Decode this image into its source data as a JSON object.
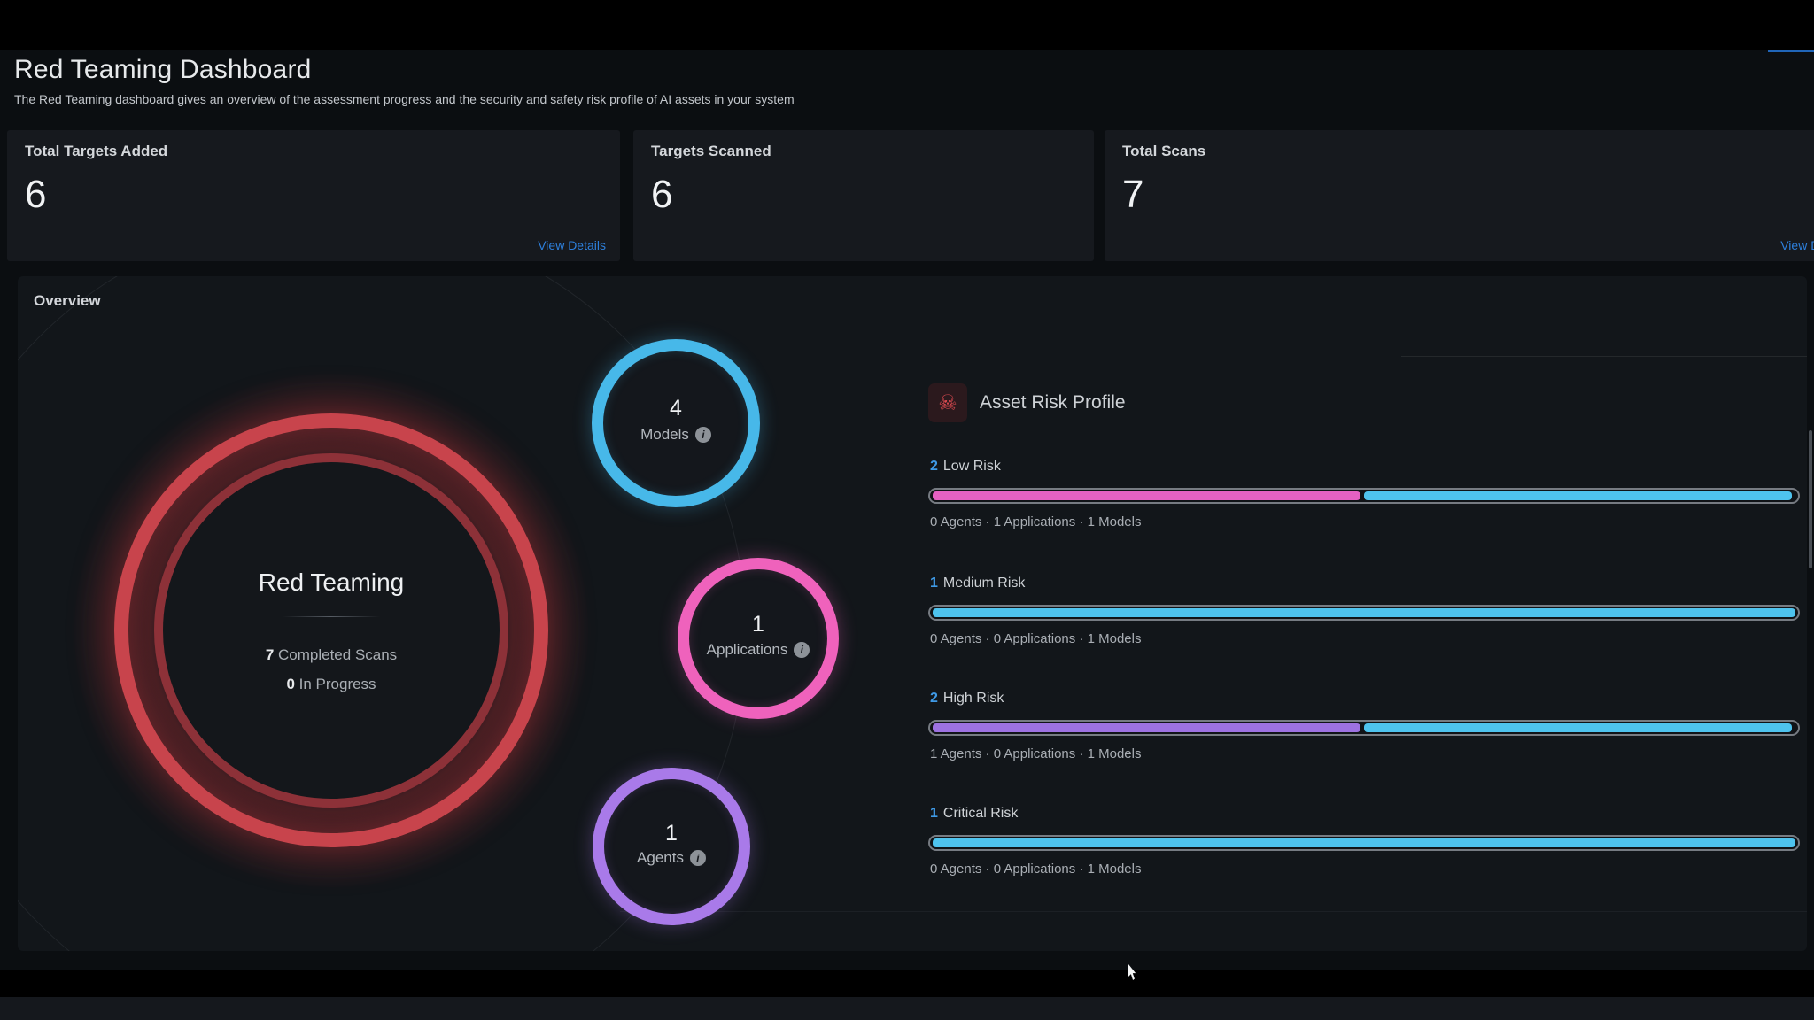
{
  "header": {
    "title": "Red Teaming Dashboard",
    "subtitle": "The Red Teaming dashboard gives an overview of the assessment progress and the security and safety risk profile of AI assets in your system"
  },
  "stat_cards": [
    {
      "label": "Total Targets Added",
      "value": "6",
      "link": "View Details"
    },
    {
      "label": "Targets Scanned",
      "value": "6"
    },
    {
      "label": "Total Scans",
      "value": "7",
      "link": "View Details"
    }
  ],
  "overview": {
    "title": "Overview",
    "gauge": {
      "title": "Red Teaming",
      "ring_color": "#c8444c",
      "completed": {
        "count": "7",
        "label": " Completed Scans"
      },
      "in_progress": {
        "count": "0",
        "label": " In Progress"
      }
    },
    "asset_circles": [
      {
        "value": "4",
        "label": "Models",
        "ring_color": "#47b8e9"
      },
      {
        "value": "1",
        "label": "Applications",
        "ring_color": "#ef62bc"
      },
      {
        "value": "1",
        "label": "Agents",
        "ring_color": "#a97ae9"
      }
    ],
    "risk_profile": {
      "title": "Asset Risk Profile",
      "rows": [
        {
          "count": "2",
          "label": "Low Risk",
          "breakdown": "0 Agents · 1 Applications · 1 Models",
          "segments": [
            {
              "color": "#e561c3",
              "width_pct": 49.6
            },
            {
              "color": "#4ec3ee",
              "width_pct": 49.6
            }
          ]
        },
        {
          "count": "1",
          "label": "Medium Risk",
          "breakdown": "0 Agents · 0 Applications · 1 Models",
          "segments": [
            {
              "color": "#4ec3ee",
              "width_pct": 100
            }
          ]
        },
        {
          "count": "2",
          "label": "High Risk",
          "breakdown": "1 Agents · 0 Applications · 1 Models",
          "segments": [
            {
              "color": "#9d72e1",
              "width_pct": 49.6
            },
            {
              "color": "#4ec3ee",
              "width_pct": 49.6
            }
          ]
        },
        {
          "count": "1",
          "label": "Critical Risk",
          "breakdown": "0 Agents · 0 Applications · 1 Models",
          "segments": [
            {
              "color": "#4ec3ee",
              "width_pct": 100
            }
          ]
        }
      ]
    }
  },
  "icons": {
    "info_letter": "i",
    "skull": "☠"
  },
  "colors": {
    "link_blue": "#2d7fdb",
    "count_blue": "#3f9ae6",
    "bar_pink": "#e561c3",
    "bar_blue": "#4ec3ee",
    "bar_purple": "#9d72e1",
    "gauge_red": "#c8444c",
    "accent_line_blue": "#2065b8"
  }
}
